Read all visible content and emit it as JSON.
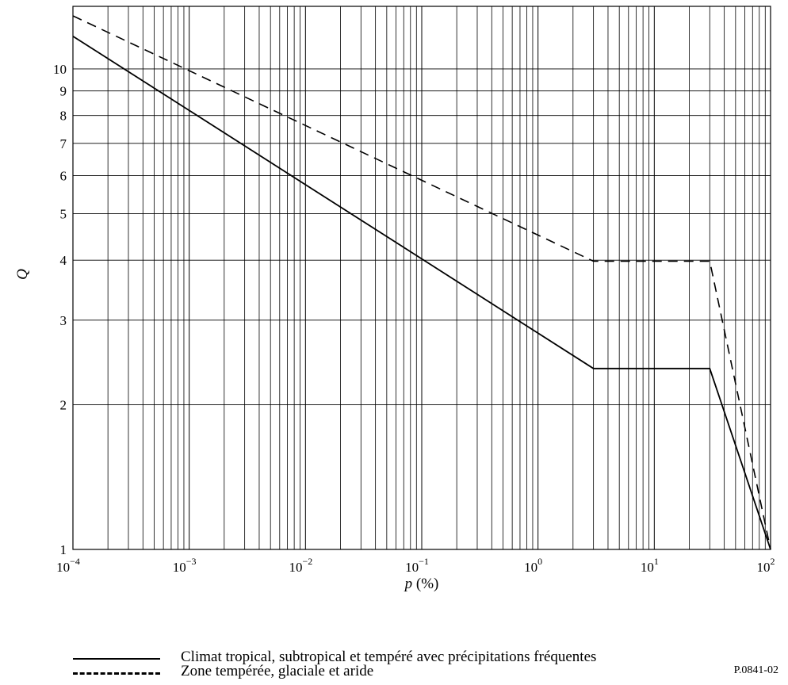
{
  "chart_data": {
    "type": "line",
    "title": "",
    "xlabel_var": "p",
    "xlabel_unit": " (%)",
    "ylabel": "Q",
    "x_scale": "log",
    "y_scale": "log",
    "xlim": [
      0.0001,
      100
    ],
    "ylim": [
      1,
      13.5
    ],
    "grid": true,
    "x_ticks": [
      {
        "value": 0.0001,
        "base": "10",
        "exp": "−4"
      },
      {
        "value": 0.001,
        "base": "10",
        "exp": "−3"
      },
      {
        "value": 0.01,
        "base": "10",
        "exp": "−2"
      },
      {
        "value": 0.1,
        "base": "10",
        "exp": "−1"
      },
      {
        "value": 1,
        "base": "10",
        "exp": "0"
      },
      {
        "value": 10,
        "base": "10",
        "exp": "1"
      },
      {
        "value": 100,
        "base": "10",
        "exp": "2"
      }
    ],
    "y_ticks": [
      {
        "value": 1,
        "label": "1"
      },
      {
        "value": 2,
        "label": "2"
      },
      {
        "value": 3,
        "label": "3"
      },
      {
        "value": 4,
        "label": "4"
      },
      {
        "value": 5,
        "label": "5"
      },
      {
        "value": 6,
        "label": "6"
      },
      {
        "value": 7,
        "label": "7"
      },
      {
        "value": 8,
        "label": "8"
      },
      {
        "value": 9,
        "label": "9"
      },
      {
        "value": 10,
        "label": "10"
      }
    ],
    "series": [
      {
        "name": "Climat tropical, subtropical et tempéré avec précipitations fréquentes",
        "style": "solid",
        "x": [
          0.0001,
          3,
          30,
          100
        ],
        "y": [
          11.7,
          2.38,
          2.38,
          1
        ]
      },
      {
        "name": "Zone tempérée, glaciale et aride",
        "style": "dashed",
        "x": [
          0.0001,
          3,
          30,
          100
        ],
        "y": [
          12.9,
          3.98,
          3.98,
          1
        ]
      }
    ]
  },
  "legend": {
    "solid_label": "Climat tropical, subtropical et tempéré avec précipitations fréquentes",
    "dashed_label": "Zone tempérée, glaciale et aride"
  },
  "figure_ref": "P.0841-02",
  "colors": {
    "line": "#000000",
    "grid": "#000000",
    "background": "#ffffff"
  }
}
